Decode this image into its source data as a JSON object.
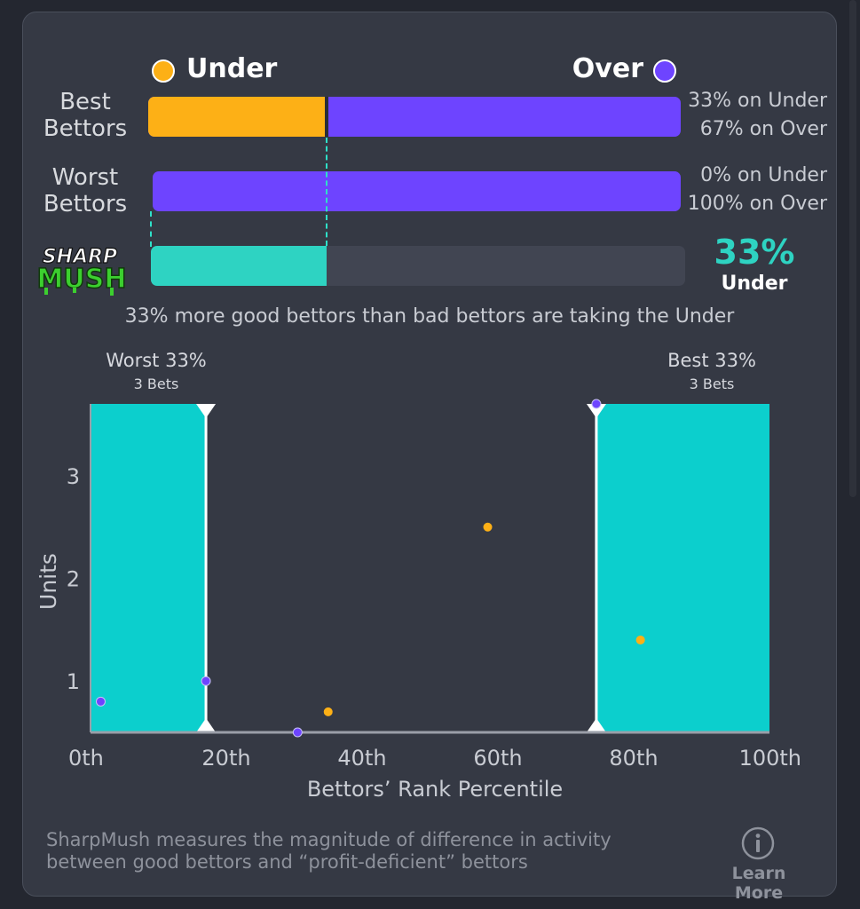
{
  "legend": {
    "under_label": "Under",
    "over_label": "Over"
  },
  "rows": {
    "best": {
      "label_line1": "Best",
      "label_line2": "Bettors",
      "under_text": "33% on Under",
      "over_text": "67% on Over",
      "under_fraction": 0.33
    },
    "worst": {
      "label_line1": "Worst",
      "label_line2": "Bettors",
      "under_text": "0% on Under",
      "over_text": "100% on Over",
      "under_fraction": 0.0
    },
    "sharpmush": {
      "logo_line1": "SHARP",
      "logo_line2": "MUSH",
      "value": "33%",
      "side": "Under",
      "fraction": 0.33
    }
  },
  "summary": "33% more good bettors than bad bettors are taking the Under",
  "chart_data": {
    "type": "scatter",
    "xlabel": "Bettors’ Rank Percentile",
    "ylabel": "Units",
    "xlim": [
      0,
      100
    ],
    "ylim": [
      0.5,
      3.7
    ],
    "x_ticks": [
      0,
      20,
      40,
      60,
      80,
      100
    ],
    "x_tick_labels": [
      "0th",
      "20th",
      "40th",
      "60th",
      "80th",
      "100th"
    ],
    "y_ticks": [
      1,
      2,
      3
    ],
    "y_tick_labels": [
      "1",
      "2",
      "3"
    ],
    "regions": [
      {
        "name": "worst",
        "label": "Worst 33%",
        "sublabel": "3 Bets",
        "x_start": 0,
        "x_end": 17
      },
      {
        "name": "best",
        "label": "Best 33%",
        "sublabel": "3 Bets",
        "x_start": 74.5,
        "x_end": 100
      }
    ],
    "series": [
      {
        "key": "under",
        "color": "#fdb016",
        "points": [
          [
            35,
            0.7
          ],
          [
            58.5,
            2.5
          ],
          [
            81,
            1.4
          ]
        ]
      },
      {
        "key": "over",
        "color": "#6e44ff",
        "points": [
          [
            1.5,
            0.8
          ],
          [
            17,
            1.0
          ],
          [
            30.5,
            0.5
          ],
          [
            74.5,
            3.7
          ]
        ]
      }
    ]
  },
  "footer": {
    "text_line1": "SharpMush measures the magnitude of difference in activity",
    "text_line2": "between good bettors and “profit-deficient” bettors",
    "learn_more": "Learn More"
  },
  "colors": {
    "under": "#fdb016",
    "over": "#6e44ff",
    "teal": "#2ed3c2",
    "region": "#0ccfcd"
  }
}
